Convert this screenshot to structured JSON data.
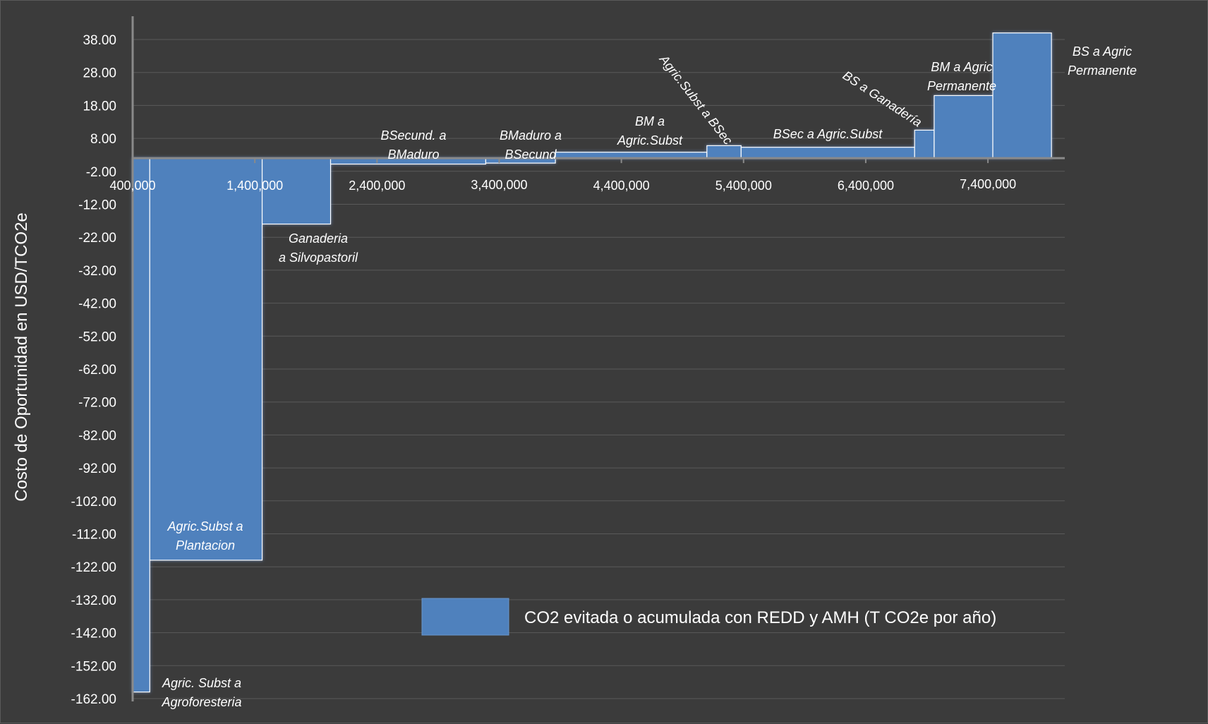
{
  "chart_data": {
    "type": "bar",
    "subtype": "marginal-abatement-cost-curve",
    "ylabel": "Costo de Oportunidad en USD/TCO2e",
    "xlabel": "",
    "title": "",
    "ylim": [
      -162,
      38
    ],
    "xlim": [
      400000,
      8000000
    ],
    "y_ticks": [
      "38.00",
      "28.00",
      "18.00",
      "8.00",
      "-2.00",
      "-12.00",
      "-22.00",
      "-32.00",
      "-42.00",
      "-52.00",
      "-62.00",
      "-72.00",
      "-82.00",
      "-92.00",
      "-102.00",
      "-112.00",
      "-122.00",
      "-132.00",
      "-142.00",
      "-152.00",
      "-162.00"
    ],
    "x_ticks": [
      "400,000",
      "1,400,000",
      "2,400,000",
      "3,400,000",
      "4,400,000",
      "5,400,000",
      "6,400,000",
      "7,400,000"
    ],
    "legend": {
      "position": "bottom-center inside plot",
      "label": "CO2 evitada o acumulada con REDD y AMH (T CO2e por año)",
      "color": "#4f81bd"
    },
    "grid": true,
    "colors": {
      "bar": "#4f81bd",
      "background": "#3b3b3b",
      "gridline": "#5a5a5a",
      "text": "#ffffff"
    },
    "series": [
      {
        "values": [
          {
            "x0": 400000,
            "x1": 540000,
            "y": -160,
            "label": [
              "Agric. Subst a",
              "Agroforesteria"
            ]
          },
          {
            "x0": 540000,
            "x1": 1460000,
            "y": -120,
            "label": [
              "Agric.Subst a",
              "Plantacion"
            ]
          },
          {
            "x0": 1460000,
            "x1": 2020000,
            "y": -18,
            "label": [
              "Ganaderia",
              "a Silvopastoril"
            ]
          },
          {
            "x0": 2020000,
            "x1": 3290000,
            "y": 0.2,
            "label": [
              "BSecund. a",
              "BMaduro"
            ]
          },
          {
            "x0": 3290000,
            "x1": 3860000,
            "y": 0.5,
            "label": [
              "BMaduro a",
              "BSecund"
            ]
          },
          {
            "x0": 3860000,
            "x1": 5100000,
            "y": 3.8,
            "label": [
              "BM a",
              "Agric.Subst"
            ]
          },
          {
            "x0": 5100000,
            "x1": 5380000,
            "y": 5.8,
            "label": [
              "Agric.Subst a BSec"
            ]
          },
          {
            "x0": 5380000,
            "x1": 6800000,
            "y": 5.3,
            "label": [
              "BSec a Agric.Subst"
            ]
          },
          {
            "x0": 6800000,
            "x1": 6960000,
            "y": 10.5,
            "label": [
              "BS a Ganadería"
            ]
          },
          {
            "x0": 6960000,
            "x1": 7440000,
            "y": 21,
            "label": [
              "BM a Agric",
              "Permanente"
            ]
          },
          {
            "x0": 7440000,
            "x1": 7920000,
            "y": 40,
            "label": [
              "BS a Agric",
              "Permanente"
            ]
          }
        ]
      }
    ]
  }
}
